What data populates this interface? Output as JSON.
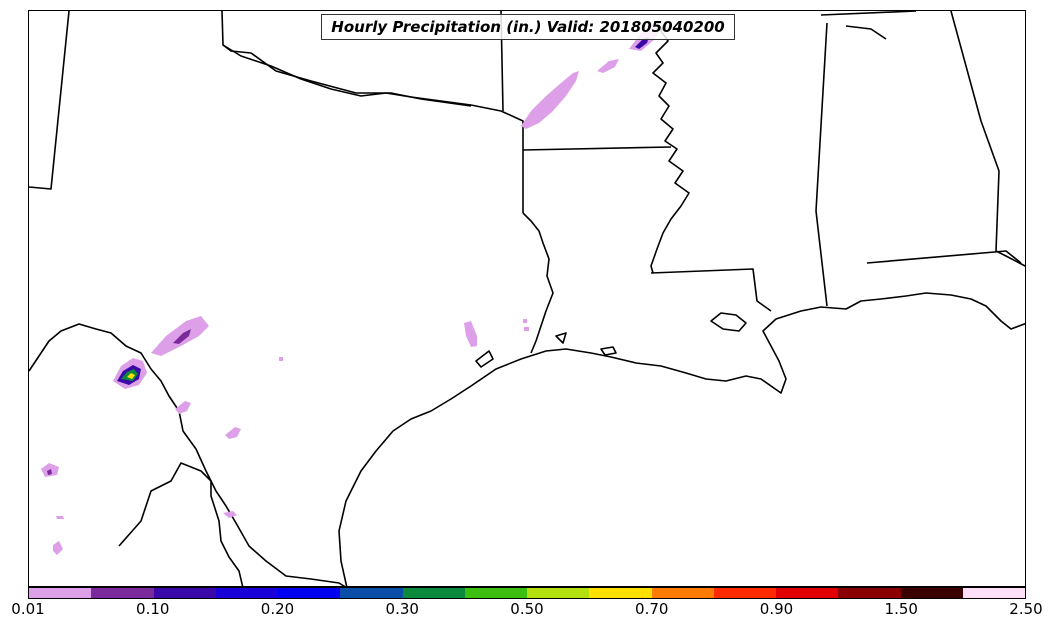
{
  "title": "Hourly Precipitation (in.) Valid: 201805040200",
  "colorbar": {
    "colors": [
      "#dda0e8",
      "#7a2a9a",
      "#3a0aa8",
      "#1a00d8",
      "#0000f0",
      "#0a4ea8",
      "#0a8a3a",
      "#3cbf10",
      "#b4e010",
      "#ffe000",
      "#ff7a00",
      "#ff2a00",
      "#e00000",
      "#8a0000",
      "#3a0000",
      "#ffe0f8"
    ],
    "tick_labels": [
      "0.01",
      "0.10",
      "0.20",
      "0.30",
      "0.50",
      "0.70",
      "0.90",
      "1.50",
      "2.50"
    ]
  }
}
